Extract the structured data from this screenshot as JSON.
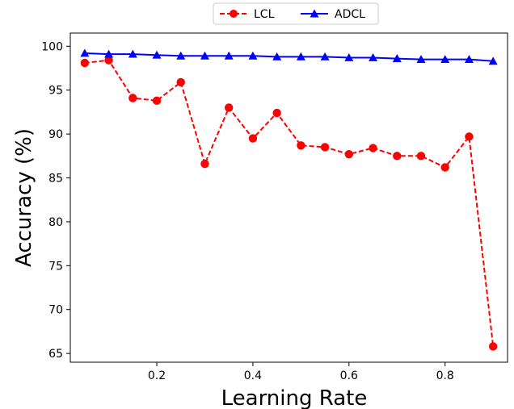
{
  "chart_data": {
    "type": "line",
    "xlabel": "Learning Rate",
    "ylabel": "Accuracy (%)",
    "xlim": [
      0.02,
      0.93
    ],
    "ylim": [
      64,
      101.5
    ],
    "xticks": [
      0.2,
      0.4,
      0.6,
      0.8
    ],
    "xtick_labels": [
      "0.2",
      "0.4",
      "0.6",
      "0.8"
    ],
    "yticks": [
      65,
      70,
      75,
      80,
      85,
      90,
      95,
      100
    ],
    "ytick_labels": [
      "65",
      "70",
      "75",
      "80",
      "85",
      "90",
      "95",
      "100"
    ],
    "grid": false,
    "legend_position": "top-center, above plot",
    "x": [
      0.05,
      0.1,
      0.15,
      0.2,
      0.25,
      0.3,
      0.35,
      0.4,
      0.45,
      0.5,
      0.55,
      0.6,
      0.65,
      0.7,
      0.75,
      0.8,
      0.85,
      0.9
    ],
    "series": [
      {
        "name": "LCL",
        "color": "#ff0000",
        "line_style": "dashed",
        "marker": "circle",
        "values": [
          98.1,
          98.4,
          94.1,
          93.8,
          95.9,
          86.6,
          93.0,
          89.5,
          92.4,
          88.7,
          88.5,
          87.7,
          88.4,
          87.5,
          87.5,
          86.2,
          89.7,
          65.8
        ]
      },
      {
        "name": "ADCL",
        "color": "#0000ff",
        "line_style": "solid",
        "marker": "triangle",
        "values": [
          99.2,
          99.1,
          99.1,
          99.0,
          98.9,
          98.9,
          98.9,
          98.9,
          98.8,
          98.8,
          98.8,
          98.7,
          98.7,
          98.6,
          98.5,
          98.5,
          98.5,
          98.3
        ]
      }
    ]
  }
}
